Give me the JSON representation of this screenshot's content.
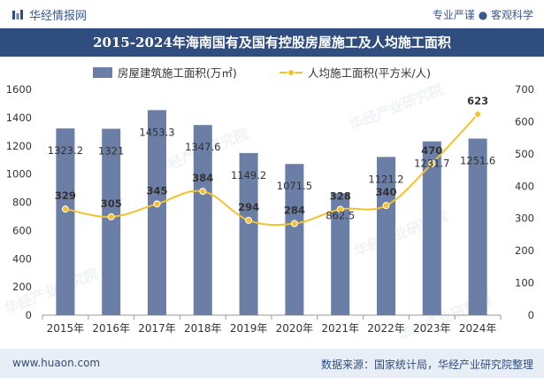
{
  "header": {
    "brand": "华经情报网",
    "slogan": "专业严谨 ● 客观科学"
  },
  "footer": {
    "site": "www.huaon.com",
    "source": "数据来源：国家统计局，华经产业研究院整理"
  },
  "colors": {
    "bar": "#6b7ea6",
    "line": "#f5c12e",
    "title_bg": "#2f4d7e",
    "footer_bg": "#e8eef6"
  },
  "chart_data": {
    "type": "bar",
    "title": "2015-2024年海南国有及国有控股房屋施工及人均施工面积",
    "categories": [
      "2015年",
      "2016年",
      "2017年",
      "2018年",
      "2019年",
      "2020年",
      "2021年",
      "2022年",
      "2023年",
      "2024年"
    ],
    "series": [
      {
        "name": "房屋建筑施工面积(万㎡)",
        "type": "bar",
        "axis": "left",
        "values": [
          1323.2,
          1321,
          1453.3,
          1347.6,
          1149.2,
          1071.5,
          862.5,
          1121.2,
          1231.7,
          1251.6
        ],
        "labels": [
          "1323.2",
          "1321",
          "1453.3",
          "1347.6",
          "1149.2",
          "1071.5",
          "862.5",
          "1121.2",
          "1231.7",
          "1251.6"
        ]
      },
      {
        "name": "人均施工面积(平方米/人)",
        "type": "line",
        "axis": "right",
        "values": [
          329,
          305,
          345,
          384,
          294,
          284,
          328,
          340,
          470,
          623
        ],
        "labels": [
          "329",
          "305",
          "345",
          "384",
          "294",
          "284",
          "328",
          "340",
          "470",
          "623"
        ]
      }
    ],
    "ylim_left": [
      0,
      1600
    ],
    "yticks_left": [
      "0",
      "200",
      "400",
      "600",
      "800",
      "1000",
      "1200",
      "1400",
      "1600"
    ],
    "ylim_right": [
      0,
      700
    ],
    "yticks_right": [
      "0",
      "100",
      "200",
      "300",
      "400",
      "500",
      "600",
      "700"
    ],
    "legend_position": "top-center",
    "watermark": "华经产业研究院"
  }
}
